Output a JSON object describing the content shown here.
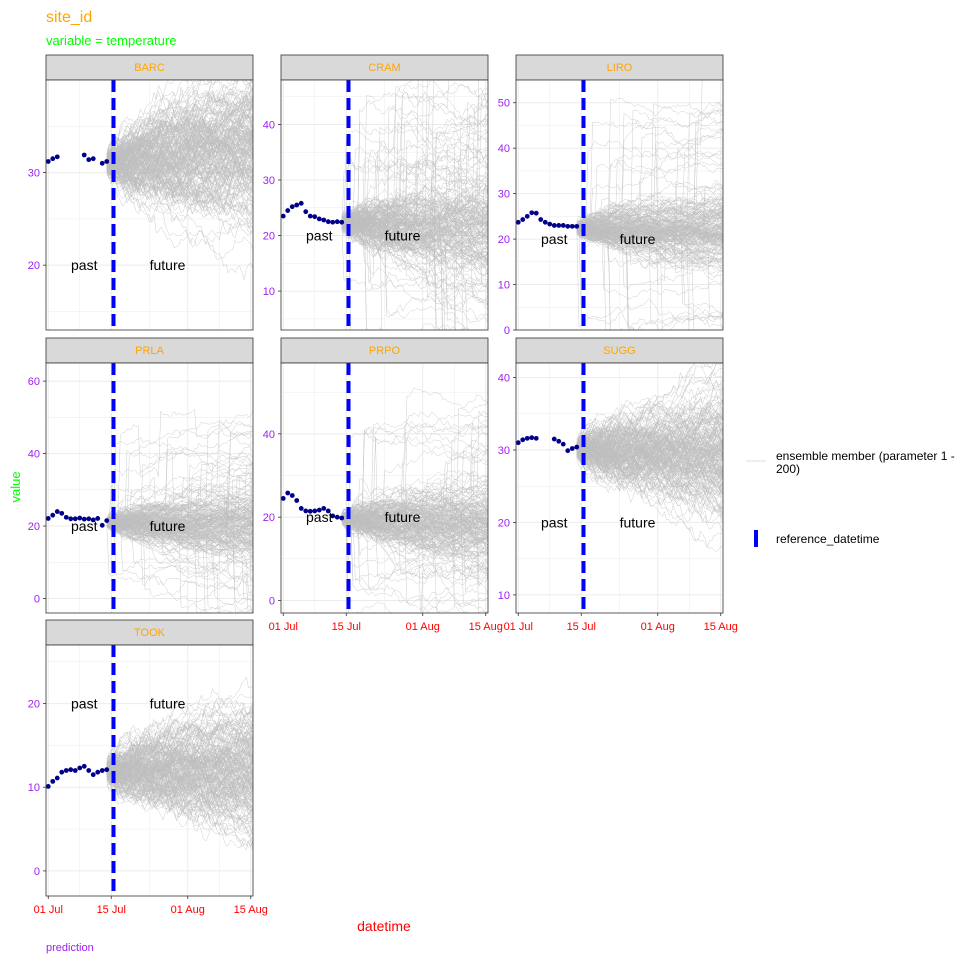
{
  "page": {
    "title": "site_id",
    "subtitle": "variable = temperature",
    "caption": "prediction"
  },
  "colors": {
    "title": "#FFA500",
    "subtitle": "#00FF00",
    "strip_text": "#FFA500",
    "strip_bg": "#D9D9D9",
    "y_tick": "#A020F0",
    "x_tick": "#FF0000",
    "y_axis_title": "#00FF00",
    "x_axis_title": "#FF0000",
    "caption": "#A020F0",
    "observed": "#00008B",
    "ensemble": "#BEBEBE",
    "reference_line": "#0000FF",
    "grid": "#EBEBEB"
  },
  "chart_data": {
    "type": "line",
    "xlabel": "datetime",
    "ylabel": "value",
    "x_ticks": [
      "01 Jul",
      "15 Jul",
      "01 Aug",
      "15 Aug"
    ],
    "x_tick_days": [
      0,
      14,
      31,
      45
    ],
    "x_range_days": [
      -0.5,
      45.5
    ],
    "reference_day": 14.5,
    "forecast_end_day": 45.5,
    "ensemble_size": 200,
    "annotations": {
      "past": "past",
      "future": "future"
    },
    "legend": {
      "ensemble": "ensemble member (parameter 1 - 200)",
      "reference": "reference_datetime"
    },
    "facets": [
      {
        "site": "BARC",
        "yticks": [
          20,
          30
        ],
        "ylim": [
          13,
          40
        ],
        "label_y": 20,
        "observed": {
          "days": [
            0,
            1,
            2,
            8,
            9,
            10,
            12,
            13
          ],
          "values": [
            31.2,
            31.5,
            31.7,
            31.9,
            31.4,
            31.5,
            31.0,
            31.2
          ]
        },
        "ensemble_start": 31.0,
        "ensemble_drift": 0.04,
        "ensemble_spread": 0.5,
        "jump_prob": 0.0
      },
      {
        "site": "CRAM",
        "yticks": [
          10,
          20,
          30,
          40
        ],
        "ylim": [
          3,
          48
        ],
        "label_y": 20,
        "observed": {
          "days": [
            0,
            1,
            2,
            3,
            4,
            5,
            6,
            7,
            8,
            9,
            10,
            11,
            12,
            13
          ],
          "values": [
            23.5,
            24.5,
            25.2,
            25.5,
            25.8,
            24.3,
            23.5,
            23.4,
            23.0,
            22.8,
            22.5,
            22.4,
            22.5,
            22.4
          ]
        },
        "ensemble_start": 22.3,
        "ensemble_drift": -0.06,
        "ensemble_spread": 0.55,
        "jump_prob": 0.02
      },
      {
        "site": "LIRO",
        "yticks": [
          0,
          10,
          20,
          30,
          40,
          50
        ],
        "ylim": [
          0,
          55
        ],
        "label_y": 20,
        "observed": {
          "days": [
            0,
            1,
            2,
            3,
            4,
            5,
            6,
            7,
            8,
            9,
            10,
            11,
            12,
            13
          ],
          "values": [
            23.7,
            24.3,
            25.0,
            25.8,
            25.7,
            24.3,
            23.7,
            23.3,
            23.0,
            23.0,
            23.0,
            22.8,
            22.8,
            22.8
          ]
        },
        "ensemble_start": 22.4,
        "ensemble_drift": 0.0,
        "ensemble_spread": 0.5,
        "jump_prob": 0.015
      },
      {
        "site": "PRLA",
        "yticks": [
          0,
          20,
          40,
          60
        ],
        "ylim": [
          -4,
          65
        ],
        "label_y": 20,
        "observed": {
          "days": [
            0,
            1,
            2,
            3,
            4,
            5,
            6,
            7,
            8,
            9,
            10,
            11,
            12,
            13
          ],
          "values": [
            22.1,
            23.0,
            24.0,
            23.5,
            22.4,
            22.0,
            22.0,
            22.2,
            21.9,
            22.0,
            21.7,
            22.1,
            20.2,
            21.5
          ]
        },
        "ensemble_start": 21.0,
        "ensemble_drift": -0.02,
        "ensemble_spread": 0.6,
        "jump_prob": 0.02
      },
      {
        "site": "PRPO",
        "yticks": [
          0,
          20,
          40
        ],
        "ylim": [
          -3,
          57
        ],
        "label_y": 20,
        "observed": {
          "days": [
            0,
            1,
            2,
            3,
            4,
            5,
            6,
            7,
            8,
            9,
            10,
            11,
            12,
            13
          ],
          "values": [
            24.5,
            25.8,
            25.2,
            24.0,
            22.1,
            21.5,
            21.4,
            21.5,
            21.7,
            22.1,
            21.5,
            20.3,
            20.0,
            19.8
          ]
        },
        "ensemble_start": 19.8,
        "ensemble_drift": -0.04,
        "ensemble_spread": 0.6,
        "jump_prob": 0.015
      },
      {
        "site": "SUGG",
        "yticks": [
          10,
          20,
          30,
          40
        ],
        "ylim": [
          7.5,
          42
        ],
        "label_y": 20,
        "observed": {
          "days": [
            0,
            1,
            2,
            3,
            4,
            8,
            9,
            10,
            11,
            12,
            13
          ],
          "values": [
            31.0,
            31.4,
            31.6,
            31.7,
            31.6,
            31.5,
            31.2,
            30.8,
            29.9,
            30.2,
            30.4
          ]
        },
        "ensemble_start": 30.0,
        "ensemble_drift": -0.02,
        "ensemble_spread": 0.55,
        "jump_prob": 0.0
      },
      {
        "site": "TOOK",
        "yticks": [
          0,
          10,
          20
        ],
        "ylim": [
          -3,
          27
        ],
        "label_y": 20,
        "observed": {
          "days": [
            0,
            1,
            2,
            3,
            4,
            5,
            6,
            7,
            8,
            9,
            10,
            11,
            12,
            13
          ],
          "values": [
            10.1,
            10.7,
            11.1,
            11.8,
            12.0,
            12.1,
            12.0,
            12.3,
            12.5,
            12.0,
            11.5,
            11.8,
            12.0,
            12.1
          ]
        },
        "ensemble_start": 11.9,
        "ensemble_drift": 0.0,
        "ensemble_spread": 0.5,
        "jump_prob": 0.0
      }
    ]
  }
}
